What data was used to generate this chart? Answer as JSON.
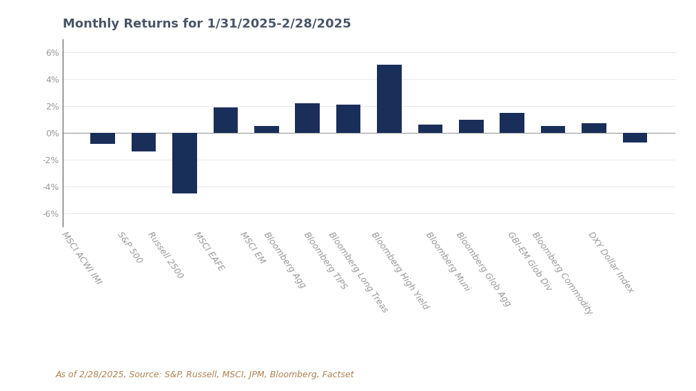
{
  "title": "Monthly Returns for 1/31/2025-2/28/2025",
  "categories": [
    "MSCI ACWI IMI",
    "S&P 500",
    "Russell 2500",
    "MSCI EAFE",
    "MSCI EM",
    "Bloomberg Agg",
    "Bloomberg TIPS",
    "Bloomberg Long Treas",
    "Bloomberg High Yield",
    "Bloomberg Muni",
    "Bloomberg Glob Agg",
    "GBI-EM Glob Div",
    "Bloomberg Commodity",
    "DXY Dollar Index"
  ],
  "values": [
    -0.8,
    -1.4,
    -4.5,
    1.9,
    0.5,
    2.2,
    2.1,
    5.1,
    0.6,
    1.0,
    1.5,
    0.5,
    0.7,
    -0.7
  ],
  "bar_color": "#1a2e5a",
  "background_color": "#ffffff",
  "title_color": "#4a5568",
  "title_fontsize": 13,
  "tick_label_color": "#999999",
  "tick_label_fontsize": 9,
  "ylim": [
    -7,
    7
  ],
  "yticks": [
    -6,
    -4,
    -2,
    0,
    2,
    4,
    6
  ],
  "footnote": "As of 2/28/2025, Source: S&P, Russell, MSCI, JPM, Bloomberg, Factset",
  "footnote_fontsize": 9,
  "footnote_color": "#b08050"
}
